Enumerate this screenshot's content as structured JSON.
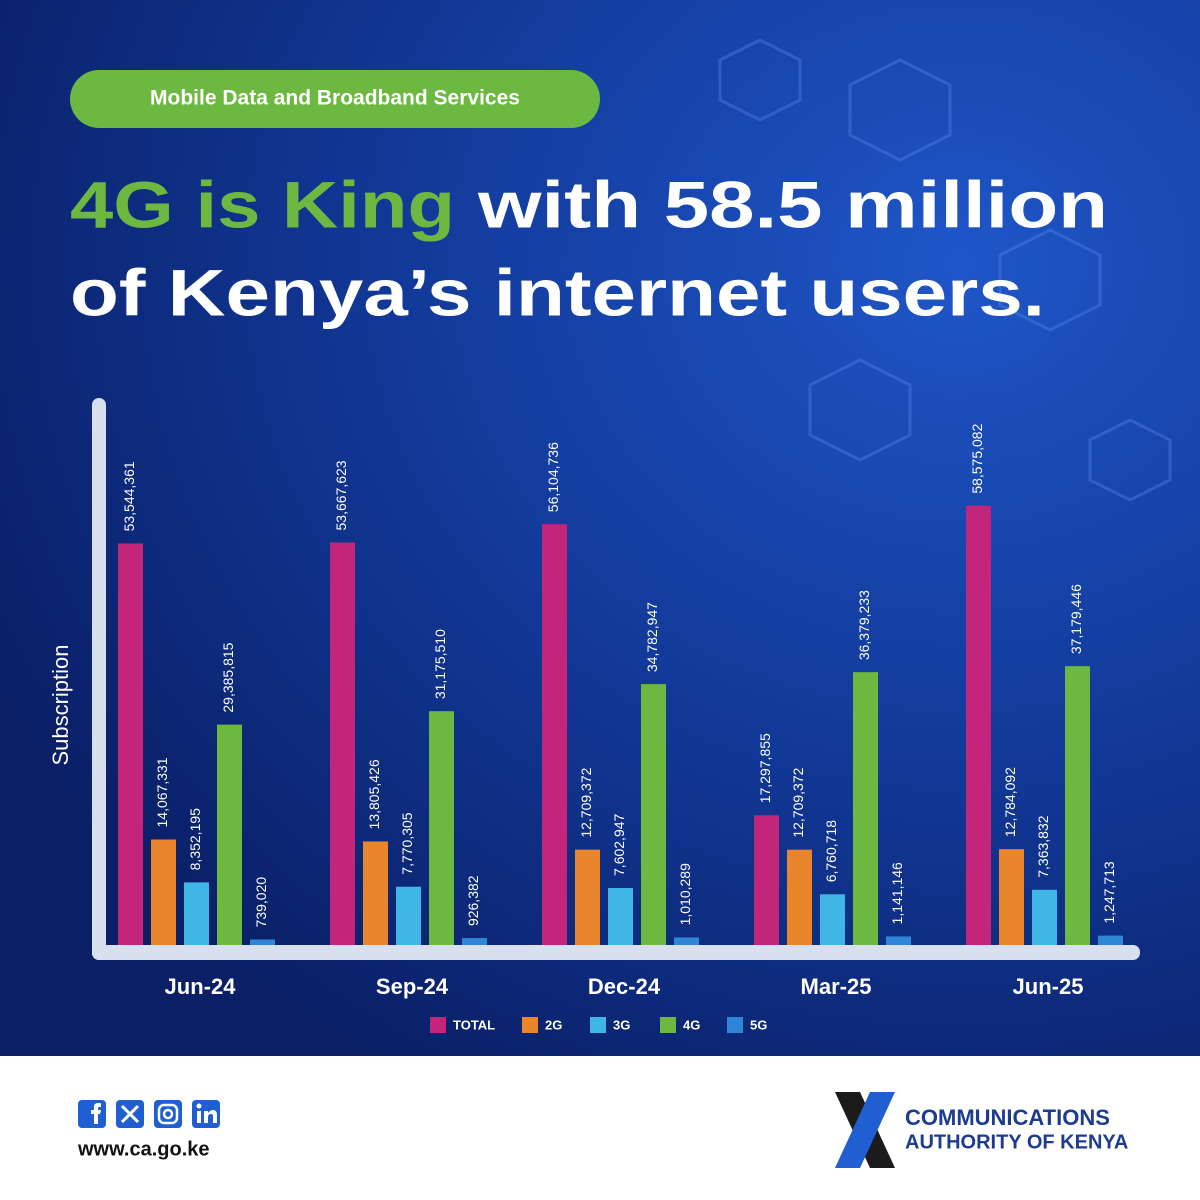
{
  "badge": "Mobile Data and Broadband Services",
  "headline": {
    "highlight": "4G is King",
    "line1": "with 58.5 million",
    "line2": "of Kenya’s internet users."
  },
  "chart_data": {
    "type": "bar",
    "y_label": "Subscription",
    "categories": [
      "Jun-24",
      "Sep-24",
      "Dec-24",
      "Mar-25",
      "Jun-25"
    ],
    "ylim": [
      0,
      60000000
    ],
    "series": [
      {
        "name": "TOTAL",
        "color": "#c2257a",
        "values": [
          53544361,
          53667623,
          56104736,
          17297855,
          58575082
        ],
        "value_labels": [
          "53,544,361",
          "53,667,623",
          "56,104,736",
          "17,297,855",
          "58,575,082"
        ]
      },
      {
        "name": "2G",
        "color": "#e9862c",
        "values": [
          14067331,
          13805426,
          12709372,
          12709372,
          12784092
        ],
        "value_labels": [
          "14,067,331",
          "13,805,426",
          "12,709,372",
          "12,709,372",
          "12,784,092"
        ]
      },
      {
        "name": "3G",
        "color": "#3fb6e6",
        "values": [
          8352195,
          7770305,
          7602947,
          6760718,
          7363832
        ],
        "value_labels": [
          "8,352,195",
          "7,770,305",
          "7,602,947",
          "6,760,718",
          "7,363,832"
        ]
      },
      {
        "name": "4G",
        "color": "#6cb841",
        "values": [
          29385815,
          31175510,
          34782947,
          36379233,
          37179446
        ],
        "value_labels": [
          "29,385,815",
          "31,175,510",
          "34,782,947",
          "36,379,233",
          "37,179,446"
        ]
      },
      {
        "name": "5G",
        "color": "#2f86d6",
        "values": [
          739020,
          926382,
          1010289,
          1141146,
          1247713
        ],
        "value_labels": [
          "739,020",
          "926,382",
          "1,010,289",
          "1,141,146",
          "1,247,713"
        ]
      }
    ]
  },
  "footer": {
    "url": "www.ca.go.ke",
    "org_line1": "COMMUNICATIONS",
    "org_line2": "AUTHORITY OF KENYA"
  }
}
